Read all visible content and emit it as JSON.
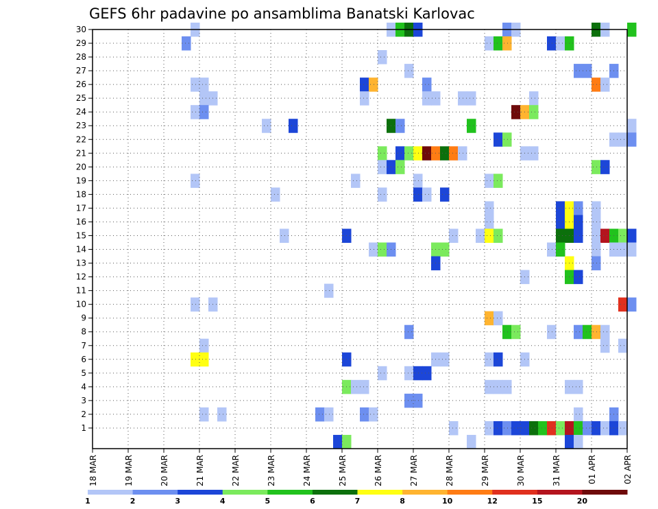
{
  "chart_data": {
    "type": "heatmap",
    "title": "GEFS 6hr padavine po ansamblima Banatski Karlovac",
    "x_ticks": [
      "18 MAR",
      "19 MAR",
      "20 MAR",
      "21 MAR",
      "22 MAR",
      "23 MAR",
      "24 MAR",
      "25 MAR",
      "26 MAR",
      "27 MAR",
      "28 MAR",
      "29 MAR",
      "30 MAR",
      "31 MAR",
      "01 APR",
      "02 APR"
    ],
    "y_ticks": [
      "1",
      "2",
      "3",
      "4",
      "5",
      "6",
      "7",
      "8",
      "9",
      "10",
      "11",
      "12",
      "13",
      "14",
      "15",
      "16",
      "17",
      "18",
      "19",
      "20",
      "21",
      "22",
      "23",
      "24",
      "25",
      "26",
      "27",
      "28",
      "29",
      "30"
    ],
    "x_range": [
      "18 MAR 00",
      "02 APR 00"
    ],
    "y_range": [
      0,
      30
    ],
    "grid": true,
    "colorbar": {
      "levels": [
        "1",
        "2",
        "3",
        "4",
        "5",
        "6",
        "7",
        "8",
        "10",
        "12",
        "15",
        "20"
      ],
      "colors": [
        "#b3c6f7",
        "#6d8ff0",
        "#1c46d8",
        "#7bea5d",
        "#21c21d",
        "#0c700c",
        "#ffff12",
        "#ffb430",
        "#ff7c14",
        "#e0301e",
        "#b4141e",
        "#6e0a0a"
      ]
    },
    "cells": [
      [
        11,
        30,
        0
      ],
      [
        33,
        30,
        0
      ],
      [
        34,
        30,
        4
      ],
      [
        35,
        30,
        5
      ],
      [
        36,
        30,
        2
      ],
      [
        46,
        30,
        1
      ],
      [
        47,
        30,
        0
      ],
      [
        56,
        30,
        5
      ],
      [
        57,
        30,
        0
      ],
      [
        60,
        30,
        4
      ],
      [
        10,
        29,
        1
      ],
      [
        44,
        29,
        0
      ],
      [
        45,
        29,
        4
      ],
      [
        46,
        29,
        7
      ],
      [
        51,
        29,
        2
      ],
      [
        52,
        29,
        0
      ],
      [
        53,
        29,
        4
      ],
      [
        32,
        28,
        0
      ],
      [
        35,
        27,
        0
      ],
      [
        54,
        27,
        1
      ],
      [
        55,
        27,
        1
      ],
      [
        58,
        27,
        1
      ],
      [
        11,
        26,
        0
      ],
      [
        12,
        26,
        0
      ],
      [
        30,
        26,
        2
      ],
      [
        31,
        26,
        7
      ],
      [
        37,
        26,
        1
      ],
      [
        56,
        26,
        8
      ],
      [
        57,
        26,
        0
      ],
      [
        12,
        25,
        0
      ],
      [
        13,
        25,
        0
      ],
      [
        30,
        25,
        0
      ],
      [
        37,
        25,
        0
      ],
      [
        38,
        25,
        0
      ],
      [
        41,
        25,
        0
      ],
      [
        42,
        25,
        0
      ],
      [
        49,
        25,
        0
      ],
      [
        11,
        24,
        0
      ],
      [
        12,
        24,
        1
      ],
      [
        47,
        24,
        11
      ],
      [
        48,
        24,
        7
      ],
      [
        49,
        24,
        3
      ],
      [
        19,
        23,
        0
      ],
      [
        22,
        23,
        2
      ],
      [
        33,
        23,
        5
      ],
      [
        34,
        23,
        1
      ],
      [
        42,
        23,
        4
      ],
      [
        60,
        23,
        0
      ],
      [
        45,
        22,
        2
      ],
      [
        46,
        22,
        3
      ],
      [
        58,
        22,
        0
      ],
      [
        59,
        22,
        0
      ],
      [
        60,
        22,
        1
      ],
      [
        32,
        21,
        3
      ],
      [
        34,
        21,
        2
      ],
      [
        35,
        21,
        3
      ],
      [
        36,
        21,
        6
      ],
      [
        37,
        21,
        11
      ],
      [
        38,
        21,
        8
      ],
      [
        39,
        21,
        5
      ],
      [
        40,
        21,
        8
      ],
      [
        41,
        21,
        0
      ],
      [
        48,
        21,
        0
      ],
      [
        49,
        21,
        0
      ],
      [
        32,
        20,
        0
      ],
      [
        33,
        20,
        2
      ],
      [
        34,
        20,
        3
      ],
      [
        56,
        20,
        3
      ],
      [
        57,
        20,
        2
      ],
      [
        11,
        19,
        0
      ],
      [
        29,
        19,
        0
      ],
      [
        36,
        19,
        0
      ],
      [
        44,
        19,
        0
      ],
      [
        45,
        19,
        3
      ],
      [
        20,
        18,
        0
      ],
      [
        32,
        18,
        0
      ],
      [
        36,
        18,
        2
      ],
      [
        37,
        18,
        0
      ],
      [
        39,
        18,
        2
      ],
      [
        44,
        17,
        0
      ],
      [
        52,
        17,
        2
      ],
      [
        53,
        17,
        6
      ],
      [
        54,
        17,
        1
      ],
      [
        56,
        17,
        0
      ],
      [
        44,
        16,
        0
      ],
      [
        52,
        16,
        2
      ],
      [
        53,
        16,
        6
      ],
      [
        54,
        16,
        2
      ],
      [
        56,
        16,
        0
      ],
      [
        21,
        15,
        0
      ],
      [
        28,
        15,
        2
      ],
      [
        40,
        15,
        0
      ],
      [
        43,
        15,
        0
      ],
      [
        44,
        15,
        6
      ],
      [
        45,
        15,
        3
      ],
      [
        52,
        15,
        5
      ],
      [
        53,
        15,
        5
      ],
      [
        54,
        15,
        2
      ],
      [
        56,
        15,
        0
      ],
      [
        57,
        15,
        10
      ],
      [
        58,
        15,
        4
      ],
      [
        59,
        15,
        3
      ],
      [
        60,
        15,
        2
      ],
      [
        31,
        14,
        0
      ],
      [
        32,
        14,
        3
      ],
      [
        33,
        14,
        1
      ],
      [
        38,
        14,
        3
      ],
      [
        39,
        14,
        3
      ],
      [
        51,
        14,
        0
      ],
      [
        52,
        14,
        4
      ],
      [
        56,
        14,
        0
      ],
      [
        58,
        14,
        0
      ],
      [
        59,
        14,
        0
      ],
      [
        60,
        14,
        0
      ],
      [
        38,
        13,
        2
      ],
      [
        53,
        13,
        6
      ],
      [
        56,
        13,
        1
      ],
      [
        48,
        12,
        0
      ],
      [
        53,
        12,
        4
      ],
      [
        54,
        12,
        2
      ],
      [
        26,
        11,
        0
      ],
      [
        11,
        10,
        0
      ],
      [
        13,
        10,
        0
      ],
      [
        59,
        10,
        9
      ],
      [
        60,
        10,
        1
      ],
      [
        44,
        9,
        7
      ],
      [
        45,
        9,
        0
      ],
      [
        35,
        8,
        1
      ],
      [
        46,
        8,
        4
      ],
      [
        47,
        8,
        3
      ],
      [
        51,
        8,
        0
      ],
      [
        54,
        8,
        1
      ],
      [
        55,
        8,
        4
      ],
      [
        56,
        8,
        7
      ],
      [
        57,
        8,
        0
      ],
      [
        12,
        7,
        0
      ],
      [
        57,
        7,
        0
      ],
      [
        59,
        7,
        0
      ],
      [
        11,
        6,
        6
      ],
      [
        12,
        6,
        6
      ],
      [
        28,
        6,
        2
      ],
      [
        38,
        6,
        0
      ],
      [
        39,
        6,
        0
      ],
      [
        44,
        6,
        0
      ],
      [
        45,
        6,
        2
      ],
      [
        48,
        6,
        0
      ],
      [
        32,
        5,
        0
      ],
      [
        35,
        5,
        0
      ],
      [
        36,
        5,
        2
      ],
      [
        37,
        5,
        2
      ],
      [
        28,
        4,
        3
      ],
      [
        29,
        4,
        0
      ],
      [
        30,
        4,
        0
      ],
      [
        44,
        4,
        0
      ],
      [
        45,
        4,
        0
      ],
      [
        46,
        4,
        0
      ],
      [
        53,
        4,
        0
      ],
      [
        54,
        4,
        0
      ],
      [
        35,
        3,
        1
      ],
      [
        36,
        3,
        1
      ],
      [
        12,
        2,
        0
      ],
      [
        14,
        2,
        0
      ],
      [
        25,
        2,
        1
      ],
      [
        26,
        2,
        0
      ],
      [
        30,
        2,
        1
      ],
      [
        31,
        2,
        0
      ],
      [
        54,
        2,
        0
      ],
      [
        58,
        2,
        1
      ],
      [
        40,
        1,
        0
      ],
      [
        44,
        1,
        0
      ],
      [
        45,
        1,
        2
      ],
      [
        46,
        1,
        1
      ],
      [
        47,
        1,
        2
      ],
      [
        48,
        1,
        2
      ],
      [
        49,
        1,
        5
      ],
      [
        50,
        1,
        4
      ],
      [
        51,
        1,
        9
      ],
      [
        52,
        1,
        3
      ],
      [
        53,
        1,
        10
      ],
      [
        54,
        1,
        4
      ],
      [
        55,
        1,
        1
      ],
      [
        56,
        1,
        2
      ],
      [
        57,
        1,
        0
      ],
      [
        58,
        1,
        2
      ],
      [
        59,
        1,
        0
      ],
      [
        27,
        0,
        2
      ],
      [
        28,
        0,
        3
      ],
      [
        42,
        0,
        0
      ],
      [
        53,
        0,
        2
      ],
      [
        54,
        0,
        0
      ]
    ]
  }
}
